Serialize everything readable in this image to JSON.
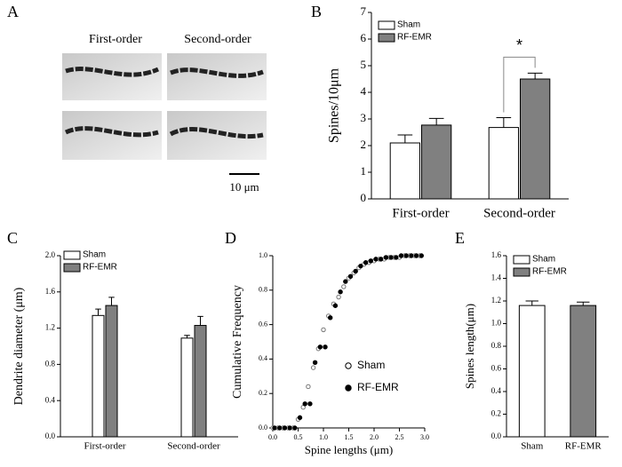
{
  "chart_data": [
    {
      "type": "image",
      "panel": "A",
      "columns": [
        "First-order",
        "Second-order"
      ],
      "scale_bar": "10 μm"
    },
    {
      "type": "bar",
      "panel": "B",
      "ylabel": "Spines/10μm",
      "categories": [
        "First-order",
        "Second-order"
      ],
      "series": [
        {
          "name": "Sham",
          "color": "#ffffff",
          "values": [
            2.1,
            2.68
          ],
          "errors": [
            0.3,
            0.37
          ]
        },
        {
          "name": "RF-EMR",
          "color": "#808080",
          "values": [
            2.77,
            4.5
          ],
          "errors": [
            0.25,
            0.22
          ]
        }
      ],
      "ylim": [
        0,
        7
      ],
      "yticks": [
        0,
        1,
        2,
        3,
        4,
        5,
        6,
        7
      ],
      "annotation": "*"
    },
    {
      "type": "bar",
      "panel": "C",
      "ylabel": "Dendrite diameter (μm)",
      "categories": [
        "First-order",
        "Second-order"
      ],
      "series": [
        {
          "name": "Sham",
          "color": "#ffffff",
          "values": [
            1.34,
            1.09
          ],
          "errors": [
            0.07,
            0.03
          ]
        },
        {
          "name": "RF-EMR",
          "color": "#808080",
          "values": [
            1.45,
            1.23
          ],
          "errors": [
            0.09,
            0.1
          ]
        }
      ],
      "ylim": [
        0,
        2.0
      ],
      "yticks": [
        {
          "value": 0,
          "label": "0.0"
        },
        0.4,
        0.8,
        1.2,
        1.6,
        {
          "value": 2,
          "label": "2.0"
        }
      ]
    },
    {
      "type": "scatter",
      "panel": "D",
      "xlabel": "Spine lengths (μm)",
      "ylabel": "Cumulative Frequency",
      "x": [
        0,
        0.1,
        0.2,
        0.3,
        0.4,
        0.5,
        0.6,
        0.7,
        0.8,
        0.9,
        1.0,
        1.1,
        1.2,
        1.3,
        1.4,
        1.5,
        1.6,
        1.7,
        1.8,
        1.9,
        2.0,
        2.1,
        2.2,
        2.3,
        2.4,
        2.5,
        2.6,
        2.7,
        2.8,
        2.9
      ],
      "series": [
        {
          "name": "Sham",
          "marker": "open",
          "color": "#000000",
          "values": [
            0,
            0,
            0,
            0,
            0,
            0.05,
            0.12,
            0.24,
            0.35,
            0.46,
            0.57,
            0.65,
            0.72,
            0.76,
            0.82,
            0.87,
            0.9,
            0.93,
            0.95,
            0.96,
            0.97,
            0.98,
            0.98,
            0.99,
            0.99,
            0.99,
            1,
            1,
            1,
            1
          ]
        },
        {
          "name": "RF-EMR",
          "marker": "filled",
          "color": "#000000",
          "values": [
            0,
            0,
            0,
            0,
            0,
            0.06,
            0.14,
            0.14,
            0.38,
            0.47,
            0.47,
            0.64,
            0.71,
            0.79,
            0.85,
            0.88,
            0.91,
            0.94,
            0.96,
            0.97,
            0.98,
            0.98,
            0.99,
            0.99,
            0.99,
            1,
            1,
            1,
            1,
            1
          ]
        }
      ],
      "xlim": [
        0,
        3.0
      ],
      "xticks": [
        {
          "value": 0,
          "label": "0.0"
        },
        0.5,
        {
          "value": 1,
          "label": "1.0"
        },
        1.5,
        {
          "value": 2,
          "label": "2.0"
        },
        2.5,
        {
          "value": 3,
          "label": "3.0"
        }
      ],
      "ylim": [
        0,
        1.0
      ],
      "yticks": [
        {
          "value": 0,
          "label": "0.0"
        },
        0.2,
        0.4,
        0.6,
        0.8,
        {
          "value": 1,
          "label": "1.0"
        }
      ]
    },
    {
      "type": "bar",
      "panel": "E",
      "ylabel": "Spines length(μm)",
      "categories": [
        "Sham",
        "RF-EMR"
      ],
      "values": [
        1.16,
        1.16
      ],
      "errors": [
        0.04,
        0.03
      ],
      "colors": [
        "#ffffff",
        "#808080"
      ],
      "ylim": [
        0,
        1.6
      ],
      "yticks": [
        {
          "value": 0,
          "label": "0.0"
        },
        0.2,
        0.4,
        0.6,
        0.8,
        {
          "value": 1,
          "label": "1.0"
        },
        1.2,
        1.4,
        1.6
      ]
    }
  ]
}
